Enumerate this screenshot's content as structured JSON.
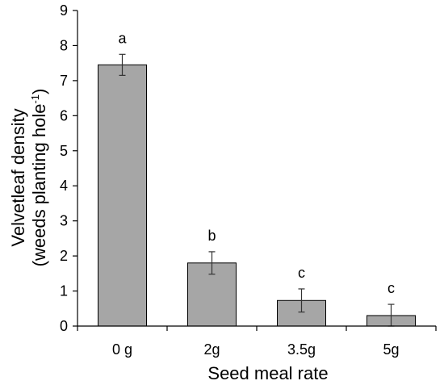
{
  "chart_data": {
    "type": "bar",
    "title": "",
    "xlabel": "Seed meal rate",
    "ylabel_line1": "Velvetleaf density",
    "ylabel_line2_main": "(weeds planting hole",
    "ylabel_line2_sup": "-1",
    "ylabel_line2_close": ")",
    "categories": [
      "0 g",
      "2g",
      "3.5g",
      "5g"
    ],
    "values": [
      7.45,
      1.8,
      0.73,
      0.3
    ],
    "errors": [
      0.3,
      0.32,
      0.33,
      0.32
    ],
    "significance": [
      "a",
      "b",
      "c",
      "c"
    ],
    "ylim": [
      0,
      9
    ],
    "yticks": [
      0,
      1,
      2,
      3,
      4,
      5,
      6,
      7,
      8,
      9
    ],
    "grid": false,
    "legend": "none",
    "bar_color": "#a6a6a6",
    "bar_edge_color": "#000000"
  }
}
